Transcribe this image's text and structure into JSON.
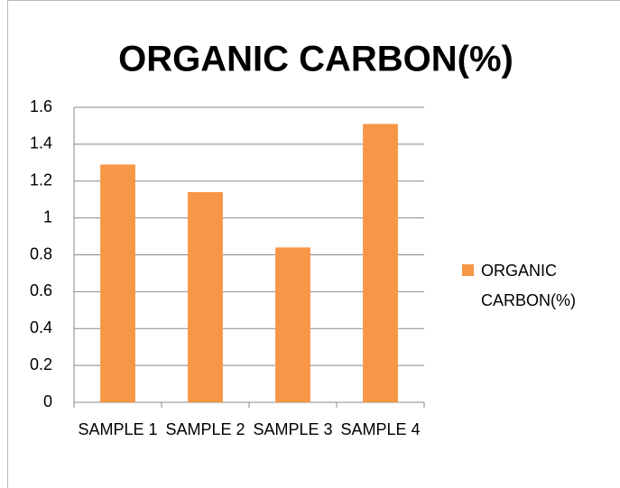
{
  "chart_data": {
    "type": "bar",
    "title": "ORGANIC CARBON(%)",
    "categories": [
      "SAMPLE 1",
      "SAMPLE 2",
      "SAMPLE 3",
      "SAMPLE 4"
    ],
    "series": [
      {
        "name": "ORGANIC CARBON(%)",
        "color": "#f79646",
        "values": [
          1.29,
          1.14,
          0.84,
          1.51
        ]
      }
    ],
    "ylim": [
      0,
      1.6
    ],
    "yticks": [
      0,
      0.2,
      0.4,
      0.6,
      0.8,
      1,
      1.2,
      1.4,
      1.6
    ],
    "grid": true,
    "legend": "right"
  }
}
